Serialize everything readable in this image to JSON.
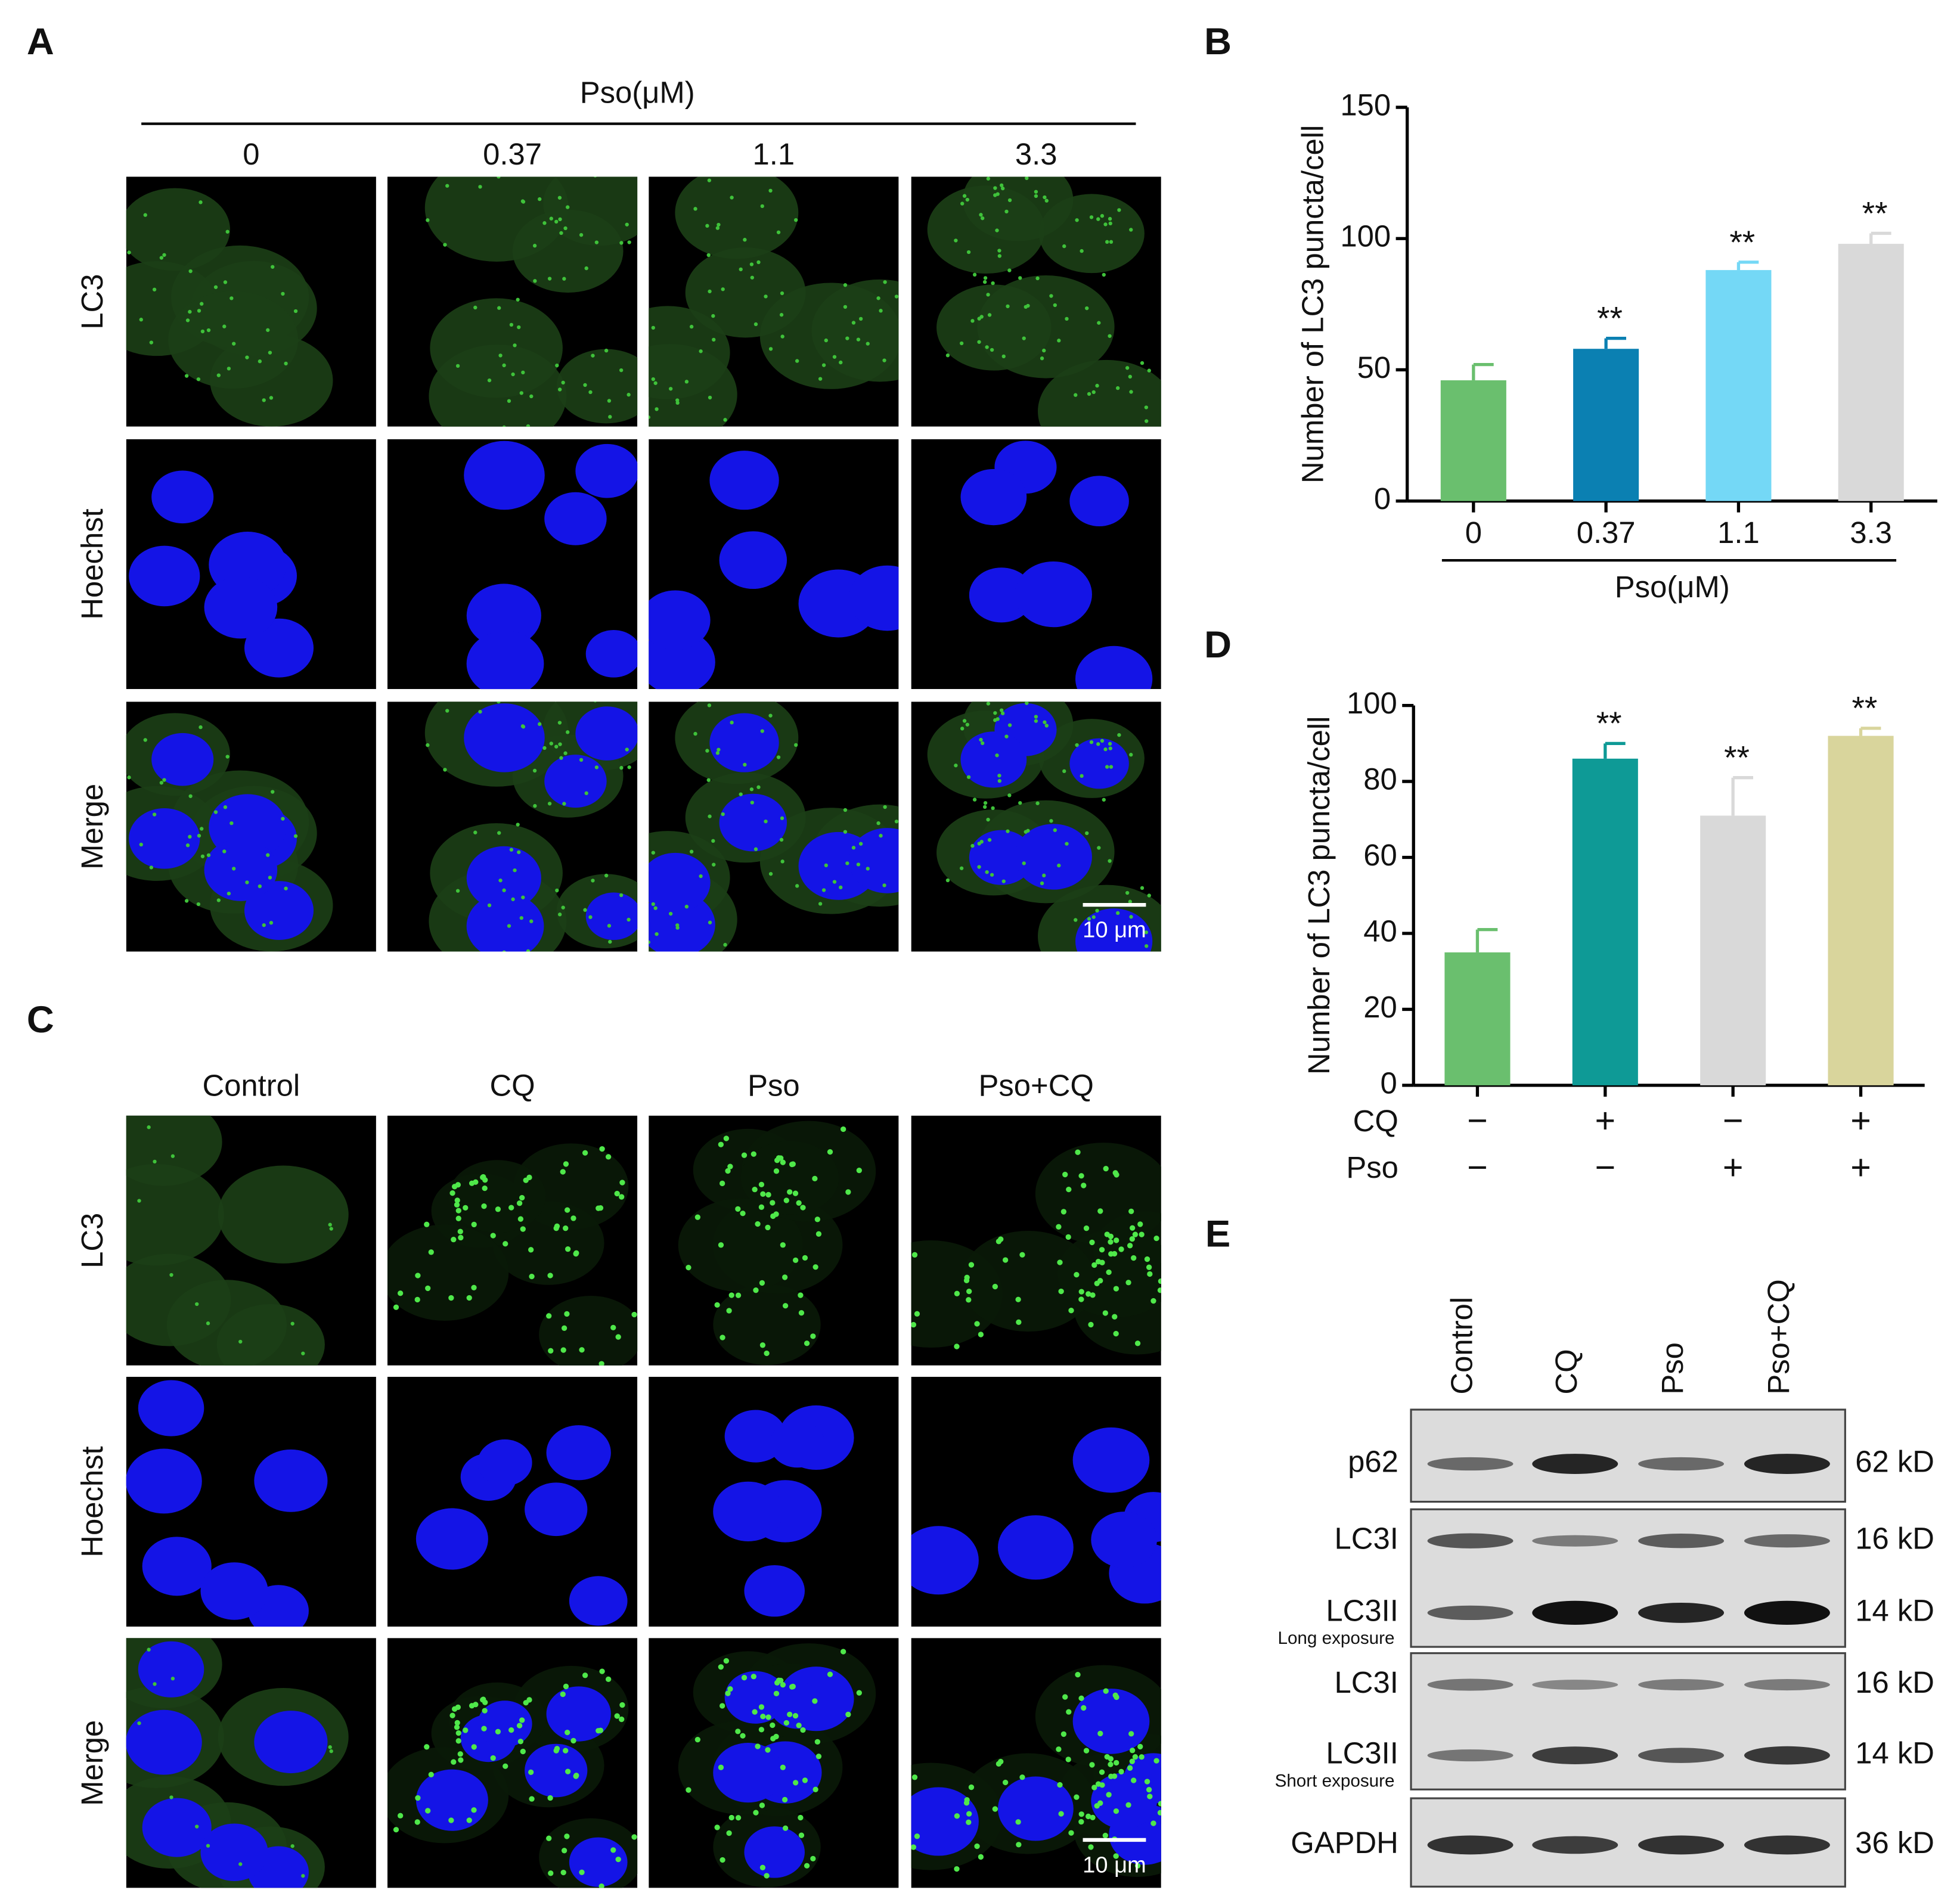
{
  "panel_labels": [
    "A",
    "B",
    "C",
    "D",
    "E"
  ],
  "panel_a": {
    "treatment_label": "Pso(μM)",
    "columns": [
      "0",
      "0.37",
      "1.1",
      "3.3"
    ],
    "rows": [
      "LC3",
      "Hoechst",
      "Merge"
    ],
    "scale_bar": "10 μm"
  },
  "panel_c": {
    "columns": [
      "Control",
      "CQ",
      "Pso",
      "Pso+CQ"
    ],
    "rows": [
      "LC3",
      "Hoechst",
      "Merge"
    ],
    "scale_bar": "10 μm"
  },
  "chart_data": [
    {
      "type": "bar",
      "ylabel": "Number of LC3 puncta/cell",
      "xlabel": "Pso(μM)",
      "categories": [
        "0",
        "0.37",
        "1.1",
        "3.3"
      ],
      "values": [
        46,
        58,
        88,
        98
      ],
      "errors": [
        6,
        4,
        3,
        4
      ],
      "significance": [
        null,
        "**",
        "**",
        "**"
      ],
      "colors": [
        "#6abf6e",
        "#0b80b2",
        "#74d8f6",
        "#d9d9d9"
      ],
      "ylim": [
        0,
        150
      ],
      "yticks": [
        0,
        50,
        100,
        150
      ]
    },
    {
      "type": "bar",
      "ylabel": "Number of LC3 puncta/cell",
      "conditions": [
        {
          "name": "CQ",
          "values": [
            "−",
            "+",
            "−",
            "+"
          ]
        },
        {
          "name": "Pso",
          "values": [
            "−",
            "−",
            "+",
            "+"
          ]
        }
      ],
      "values": [
        35,
        86,
        71,
        92
      ],
      "errors": [
        6,
        4,
        10,
        2
      ],
      "significance": [
        null,
        "**",
        "**",
        "**"
      ],
      "colors": [
        "#6abf6e",
        "#0e9a96",
        "#d9d9d9",
        "#d9d59c"
      ],
      "ylim": [
        0,
        100
      ],
      "yticks": [
        0,
        20,
        40,
        60,
        80,
        100
      ]
    }
  ],
  "panel_e": {
    "lanes": [
      "Control",
      "CQ",
      "Pso",
      "Pso+CQ"
    ],
    "blots": [
      {
        "rows": [
          {
            "protein": "p62",
            "size": "62 kD"
          }
        ]
      },
      {
        "rows": [
          {
            "protein": "LC3I",
            "size": "16 kD"
          },
          {
            "protein": "LC3II",
            "size": "14 kD"
          }
        ],
        "note": "Long exposure"
      },
      {
        "rows": [
          {
            "protein": "LC3I",
            "size": "16 kD"
          },
          {
            "protein": "LC3II",
            "size": "14 kD"
          }
        ],
        "note": "Short exposure"
      },
      {
        "rows": [
          {
            "protein": "GAPDH",
            "size": "36 kD"
          }
        ]
      }
    ]
  }
}
